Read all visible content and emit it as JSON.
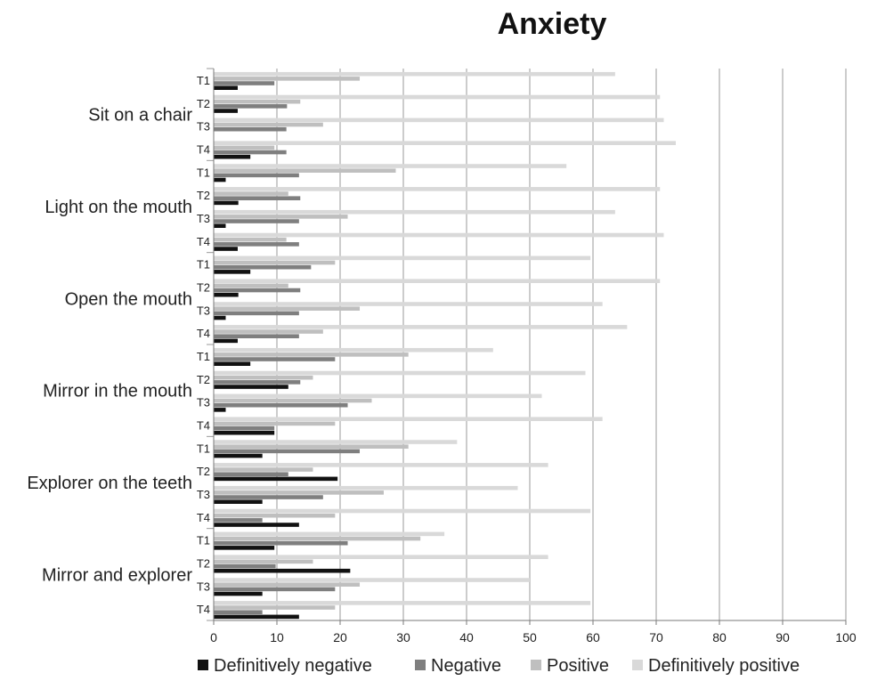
{
  "chart_data": {
    "type": "bar",
    "orientation": "horizontal",
    "title": "Anxiety",
    "xlabel": "",
    "ylabel": "",
    "xlim": [
      0,
      100
    ],
    "x_ticks": [
      "0",
      "10",
      "20",
      "30",
      "40",
      "50",
      "60",
      "70",
      "80",
      "90",
      "100"
    ],
    "grid": "vertical",
    "legend_position": "bottom",
    "series": [
      {
        "name": "Definitively negative",
        "color": "#111111"
      },
      {
        "name": "Negative",
        "color": "#7f7f7f"
      },
      {
        "name": "Positive",
        "color": "#bfbfbf"
      },
      {
        "name": "Definitively positive",
        "color": "#d9d9d9"
      }
    ],
    "groups": [
      {
        "label": "Sit on a chair",
        "times": [
          {
            "label": "T1",
            "values": [
              3.8,
              9.6,
              23.1,
              63.5
            ]
          },
          {
            "label": "T2",
            "values": [
              3.8,
              11.6,
              13.7,
              70.6
            ]
          },
          {
            "label": "T3",
            "values": [
              0,
              11.5,
              17.3,
              71.2
            ]
          },
          {
            "label": "T4",
            "values": [
              5.8,
              11.5,
              9.6,
              73.1
            ]
          }
        ]
      },
      {
        "label": "Light on the mouth",
        "times": [
          {
            "label": "T1",
            "values": [
              1.9,
              13.5,
              28.8,
              55.8
            ]
          },
          {
            "label": "T2",
            "values": [
              3.9,
              13.7,
              11.8,
              70.6
            ]
          },
          {
            "label": "T3",
            "values": [
              1.9,
              13.5,
              21.2,
              63.5
            ]
          },
          {
            "label": "T4",
            "values": [
              3.8,
              13.5,
              11.5,
              71.2
            ]
          }
        ]
      },
      {
        "label": "Open the mouth",
        "times": [
          {
            "label": "T1",
            "values": [
              5.8,
              15.4,
              19.2,
              59.6
            ]
          },
          {
            "label": "T2",
            "values": [
              3.9,
              13.7,
              11.8,
              70.6
            ]
          },
          {
            "label": "T3",
            "values": [
              1.9,
              13.5,
              23.1,
              61.5
            ]
          },
          {
            "label": "T4",
            "values": [
              3.8,
              13.5,
              17.3,
              65.4
            ]
          }
        ]
      },
      {
        "label": "Mirror in the mouth",
        "times": [
          {
            "label": "T1",
            "values": [
              5.8,
              19.2,
              30.8,
              44.2
            ]
          },
          {
            "label": "T2",
            "values": [
              11.8,
              13.7,
              15.7,
              58.8
            ]
          },
          {
            "label": "T3",
            "values": [
              1.9,
              21.2,
              25.0,
              51.9
            ]
          },
          {
            "label": "T4",
            "values": [
              9.6,
              9.6,
              19.2,
              61.5
            ]
          }
        ]
      },
      {
        "label": "Explorer on the teeth",
        "times": [
          {
            "label": "T1",
            "values": [
              7.7,
              23.1,
              30.8,
              38.5
            ]
          },
          {
            "label": "T2",
            "values": [
              19.6,
              11.8,
              15.7,
              52.9
            ]
          },
          {
            "label": "T3",
            "values": [
              7.7,
              17.3,
              26.9,
              48.1
            ]
          },
          {
            "label": "T4",
            "values": [
              13.5,
              7.7,
              19.2,
              59.6
            ]
          }
        ]
      },
      {
        "label": "Mirror and explorer",
        "times": [
          {
            "label": "T1",
            "values": [
              9.6,
              21.2,
              32.7,
              36.5
            ]
          },
          {
            "label": "T2",
            "values": [
              21.6,
              9.8,
              15.7,
              52.9
            ]
          },
          {
            "label": "T3",
            "values": [
              7.7,
              19.2,
              23.1,
              50.0
            ]
          },
          {
            "label": "T4",
            "values": [
              13.5,
              7.7,
              19.2,
              59.6
            ]
          }
        ]
      }
    ]
  }
}
